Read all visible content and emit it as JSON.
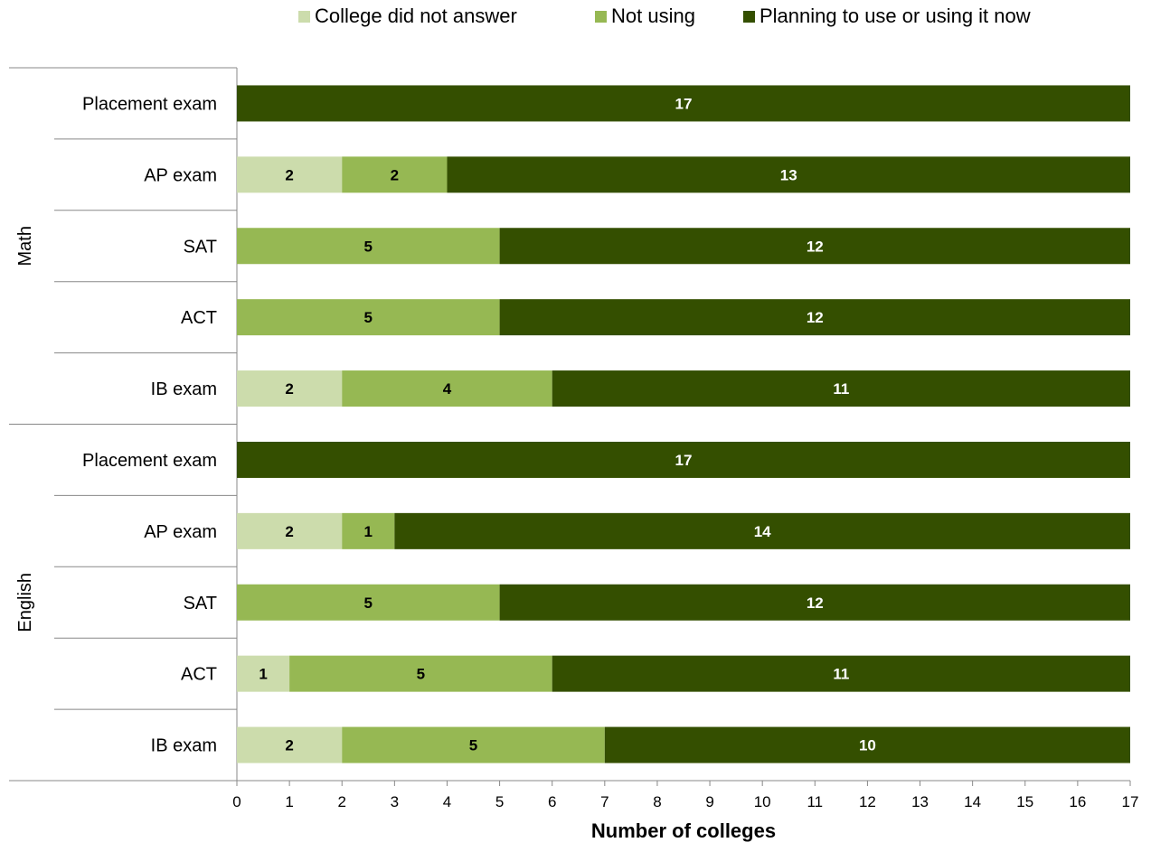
{
  "chart_data": {
    "type": "bar",
    "orientation": "horizontal",
    "stacked": true,
    "title": "",
    "xlabel": "Number of colleges",
    "ylabel": "",
    "xlim": [
      0,
      17
    ],
    "xticks": [
      0,
      1,
      2,
      3,
      4,
      5,
      6,
      7,
      8,
      9,
      10,
      11,
      12,
      13,
      14,
      15,
      16,
      17
    ],
    "legend_position": "top",
    "grid": false,
    "groups": [
      {
        "label": "Math",
        "categories": [
          "Placement exam",
          "AP exam",
          "SAT",
          "ACT",
          "IB exam"
        ]
      },
      {
        "label": "English",
        "categories": [
          "Placement exam",
          "AP exam",
          "SAT",
          "ACT",
          "IB exam"
        ]
      }
    ],
    "series": [
      {
        "name": "College did not answer",
        "color": "#ccdcac",
        "label_color": "#000000",
        "values": [
          0,
          2,
          0,
          0,
          2,
          0,
          2,
          0,
          1,
          2
        ]
      },
      {
        "name": "Not using",
        "color": "#96b853",
        "label_color": "#000000",
        "values": [
          0,
          2,
          5,
          5,
          4,
          0,
          1,
          5,
          5,
          5
        ]
      },
      {
        "name": "Planning to use or using it now",
        "color": "#344f00",
        "label_color": "#ffffff",
        "values": [
          17,
          13,
          12,
          12,
          11,
          17,
          14,
          12,
          11,
          10
        ]
      }
    ]
  }
}
